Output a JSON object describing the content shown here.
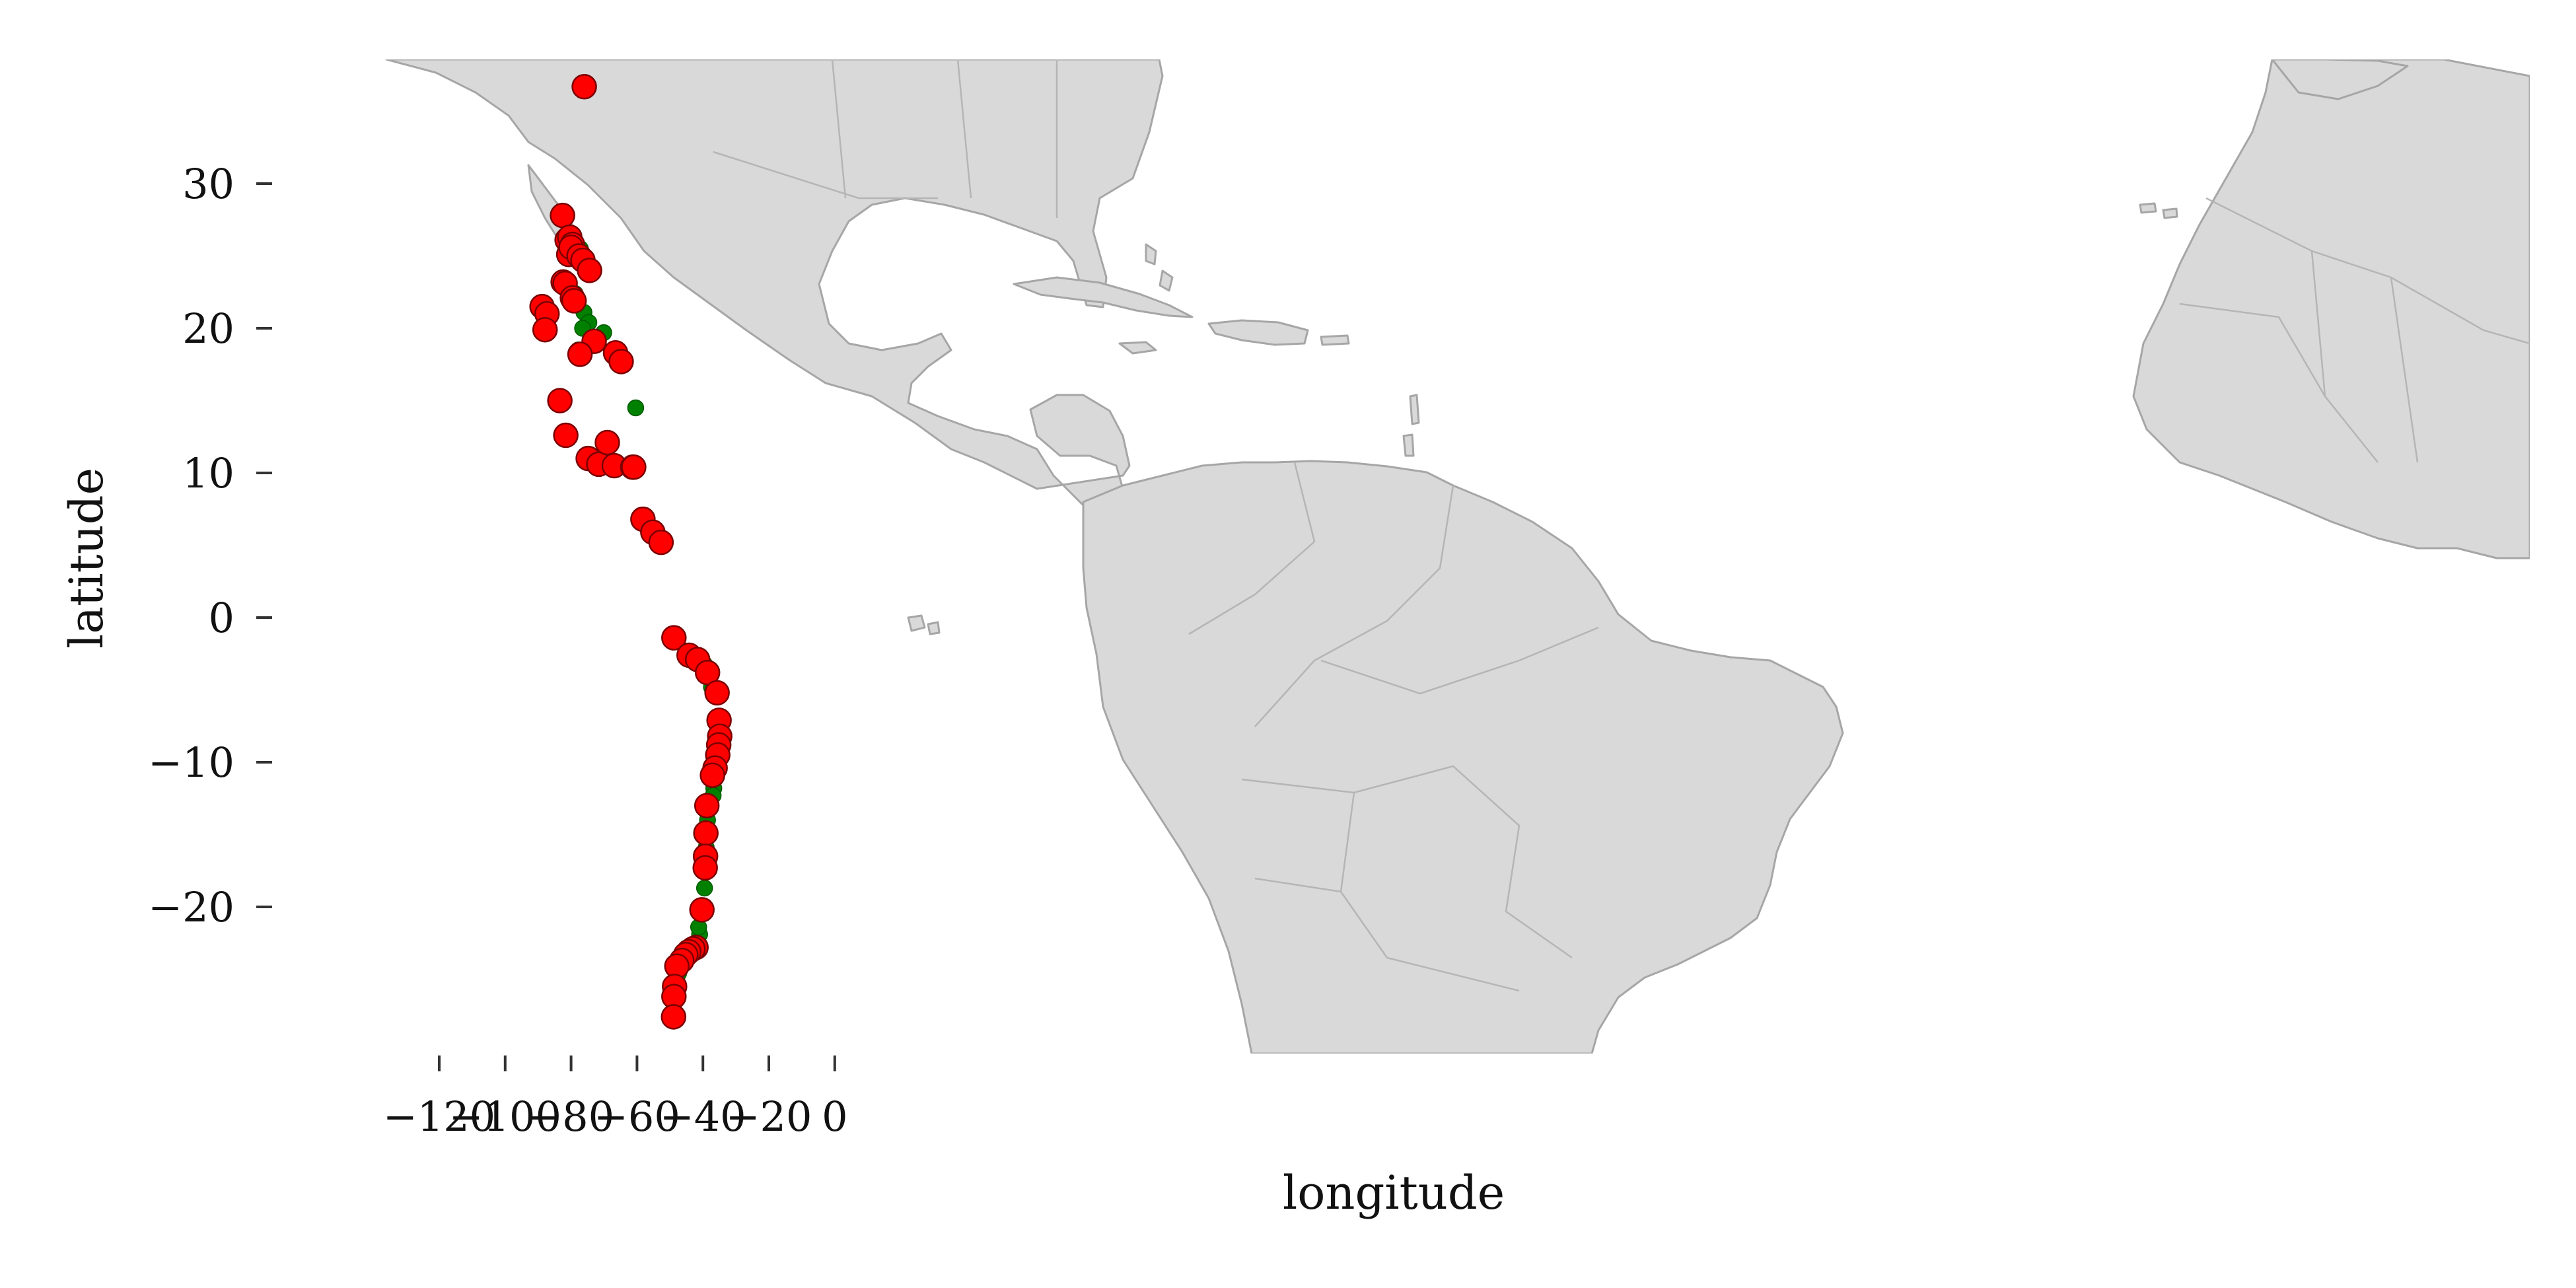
{
  "chart_data": {
    "type": "scatter",
    "title": "",
    "xlabel": "longitude",
    "ylabel": "latitude",
    "xlim": [
      -130,
      7
    ],
    "ylim": [
      -30,
      38
    ],
    "x_ticks": [
      -120,
      -100,
      -80,
      -60,
      -40,
      -20,
      0
    ],
    "y_ticks": [
      30,
      20,
      10,
      0,
      -10,
      -20
    ],
    "x_tick_labels": [
      "−120",
      "−100",
      "−80",
      "−60",
      "−40",
      "−20",
      "0"
    ],
    "y_tick_labels": [
      "30",
      "20",
      "10",
      "0",
      "−10",
      "−20"
    ],
    "grid": false,
    "basemap": "grey land polygons with country and province borders",
    "colors": {
      "land": "#d9d9d9",
      "border": "#a6a6a6",
      "red_points": "#ff0000",
      "green_points": "#008000"
    },
    "series": [
      {
        "color": "#ff0000",
        "x": [
          -76.0,
          -82.6,
          -81.2,
          -80.4,
          -79.6,
          -80.7,
          -80.0,
          -77.6,
          -76.4,
          -74.4,
          -82.4,
          -81.8,
          -79.6,
          -79.1,
          -73.0,
          -77.3,
          -66.5,
          -64.8,
          -88.8,
          -87.3,
          -87.9,
          -83.4,
          -81.6,
          -74.8,
          -71.6,
          -69.0,
          -66.9,
          -61.3,
          -61.0,
          -58.2,
          -55.2,
          -52.7,
          -48.8,
          -44.2,
          -41.6,
          -38.6,
          -35.7,
          -35.1,
          -34.9,
          -35.2,
          -35.5,
          -36.3,
          -37.1,
          -38.8,
          -39.1,
          -39.2,
          -39.3,
          -40.3,
          -42.1,
          -43.0,
          -44.3,
          -45.2,
          -46.4,
          -47.9,
          -48.6,
          -48.8,
          -48.9
        ],
        "y": [
          36.7,
          27.8,
          26.1,
          26.3,
          25.8,
          25.1,
          25.6,
          25.0,
          24.7,
          24.0,
          23.2,
          23.1,
          22.1,
          21.9,
          19.1,
          18.2,
          18.3,
          17.7,
          21.5,
          21.0,
          19.9,
          15.0,
          12.6,
          11.0,
          10.6,
          12.1,
          10.5,
          10.4,
          10.4,
          6.8,
          5.9,
          5.2,
          -1.4,
          -2.6,
          -2.9,
          -3.8,
          -5.2,
          -7.1,
          -8.2,
          -8.8,
          -9.5,
          -10.4,
          -10.9,
          -13.0,
          -14.9,
          -16.5,
          -17.3,
          -20.2,
          -22.8,
          -22.9,
          -23.1,
          -23.3,
          -23.7,
          -24.1,
          -25.5,
          -26.2,
          -27.6
        ]
      },
      {
        "color": "#008000",
        "x": [
          -78.8,
          -77.2,
          -76.9,
          -76.1,
          -74.6,
          -76.5,
          -77.8,
          -70.1,
          -60.4,
          -43.0,
          -40.5,
          -39.6,
          -38.8,
          -37.4,
          -36.9,
          -36.7,
          -36.9,
          -37.8,
          -38.6,
          -39.0,
          -39.5,
          -41.0,
          -41.3,
          -42.3,
          -47.4,
          -48.2
        ],
        "y": [
          22.4,
          25.5,
          24.5,
          21.1,
          20.4,
          20.0,
          18.5,
          19.7,
          14.5,
          -2.5,
          -2.9,
          -3.2,
          -3.7,
          -4.8,
          -5.0,
          -11.8,
          -12.3,
          -13.0,
          -14.0,
          -15.9,
          -18.7,
          -21.9,
          -21.4,
          -22.8,
          -24.6,
          -25.2
        ]
      }
    ]
  }
}
